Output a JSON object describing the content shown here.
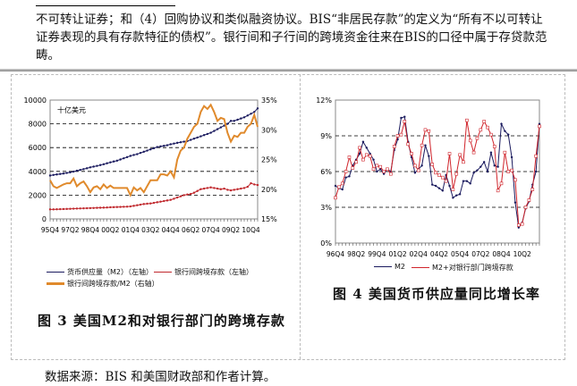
{
  "document": {
    "paragraph": "不可转让证券；和（4）回购协议和类似融资协议。BIS“非居民存款”的定义为“所有不以可转让证券表现的具有存款特征的债权”。银行间和子行间的跨境资金往来在BIS的口径中属于存贷款范畴。",
    "figure3_caption": "图 3  美国M2和对银行部门的跨境存款",
    "figure4_caption": "图 4  美国货币供应量同比增长率",
    "source": "数据来源：BIS 和美国财政部和作者计算。"
  },
  "chart_data": [
    {
      "type": "line",
      "annotation": "十亿美元",
      "x_tick_labels": [
        "95Q4",
        "97Q2",
        "98Q4",
        "00Q2",
        "01Q4",
        "03Q2",
        "04Q4",
        "06Q2",
        "07Q4",
        "09Q2",
        "10Q4"
      ],
      "y_left": {
        "range": [
          0,
          10000
        ],
        "ticks": [
          "0",
          "2000",
          "4000",
          "6000",
          "8000",
          "10000"
        ]
      },
      "y_right": {
        "range": [
          15,
          35
        ],
        "ticks": [
          "15%",
          "20%",
          "25%",
          "30%",
          "35%"
        ]
      },
      "grid": "dashed horizontal",
      "legend": "bottom",
      "series": [
        {
          "name": "货币供应量（M2）（左轴）",
          "axis": "left",
          "color": "#1a1a5e",
          "values": [
            3650,
            3700,
            3740,
            3780,
            3820,
            3870,
            3920,
            3980,
            4050,
            4120,
            4190,
            4260,
            4340,
            4400,
            4460,
            4530,
            4600,
            4680,
            4760,
            4830,
            4900,
            5000,
            5100,
            5200,
            5300,
            5380,
            5450,
            5550,
            5650,
            5750,
            5850,
            5950,
            6050,
            6100,
            6150,
            6200,
            6280,
            6340,
            6400,
            6450,
            6500,
            6550,
            6650,
            6750,
            6850,
            6950,
            7050,
            7150,
            7250,
            7400,
            7550,
            7700,
            7850,
            8000,
            8250,
            8250,
            8350,
            8450,
            8550,
            8700,
            8850,
            9000,
            9300
          ]
        },
        {
          "name": "银行间跨境存款（左轴）",
          "axis": "left",
          "color": "#c0282d",
          "values": [
            800,
            800,
            810,
            820,
            830,
            840,
            850,
            860,
            870,
            880,
            890,
            900,
            910,
            920,
            930,
            940,
            950,
            960,
            980,
            990,
            1000,
            1010,
            1020,
            1030,
            1050,
            1100,
            1150,
            1200,
            1250,
            1280,
            1300,
            1350,
            1400,
            1450,
            1500,
            1550,
            1600,
            1700,
            1800,
            1900,
            2000,
            2050,
            2100,
            2200,
            2350,
            2500,
            2550,
            2600,
            2650,
            2600,
            2550,
            2500,
            2550,
            2450,
            2400,
            2450,
            2500,
            2550,
            2600,
            2700,
            3000,
            2900,
            2850
          ]
        },
        {
          "name": "银行间跨境存款/M2（右轴）",
          "axis": "right",
          "color": "#e08a2c",
          "values": [
            21.5,
            20.5,
            20.2,
            20.5,
            20.8,
            21.0,
            21.0,
            21.8,
            20.5,
            21.0,
            21.3,
            20.5,
            19.5,
            20.3,
            20.5,
            20.0,
            20.8,
            20.2,
            20.6,
            20.2,
            20.2,
            20.2,
            20.2,
            20.2,
            19.0,
            20.3,
            19.8,
            20.2,
            19.5,
            20.5,
            21.5,
            21.5,
            21.5,
            22.5,
            22.5,
            22.3,
            23.0,
            22.0,
            25.0,
            26.5,
            27.0,
            28.5,
            29.5,
            30.5,
            31.0,
            33.0,
            34.0,
            33.5,
            34.2,
            33.0,
            31.5,
            32.0,
            31.8,
            29.5,
            28.0,
            29.0,
            28.8,
            29.5,
            29.5,
            30.5,
            31.0,
            32.5,
            30.5
          ]
        }
      ]
    },
    {
      "type": "line",
      "x_tick_labels": [
        "96Q4",
        "98Q2",
        "99Q4",
        "01Q2",
        "02Q4",
        "04Q2",
        "05Q4",
        "07Q2",
        "08Q4",
        "10Q2"
      ],
      "y": {
        "range": [
          0,
          12
        ],
        "ticks": [
          "0%",
          "3%",
          "6%",
          "9%",
          "12%"
        ]
      },
      "grid": "dashed horizontal",
      "legend": "bottom",
      "series": [
        {
          "name": "M2",
          "color": "#1a1a5e",
          "values": [
            4.8,
            4.6,
            4.5,
            5.5,
            5.6,
            6.5,
            7.0,
            7.5,
            8.5,
            8.0,
            7.5,
            7.0,
            6.0,
            6.2,
            5.8,
            6.2,
            6.0,
            7.8,
            8.7,
            10.5,
            10.6,
            8.5,
            7.2,
            5.9,
            6.2,
            6.5,
            8.2,
            7.3,
            4.9,
            4.8,
            4.6,
            4.4,
            5.7,
            4.8,
            3.8,
            4.0,
            4.1,
            5.2,
            5.2,
            5.0,
            5.9,
            6.1,
            6.4,
            6.8,
            6.0,
            7.6,
            6.5,
            6.4,
            10.0,
            9.4,
            9.1,
            7.2,
            3.4,
            1.3,
            1.7,
            2.9,
            3.5,
            4.9,
            6.0,
            10.0
          ]
        },
        {
          "name": "M2+对银行部门跨境存款",
          "color": "#d0242b",
          "values": [
            3.8,
            4.7,
            5.0,
            6.0,
            7.2,
            6.3,
            6.8,
            8.0,
            7.0,
            7.4,
            7.3,
            6.2,
            6.5,
            6.4,
            6.0,
            6.2,
            5.8,
            8.1,
            9.0,
            9.1,
            10.2,
            8.3,
            7.5,
            6.5,
            6.1,
            8.2,
            9.5,
            9.4,
            6.6,
            5.9,
            5.7,
            5.5,
            5.2,
            7.5,
            4.5,
            5.8,
            7.4,
            6.8,
            10.3,
            8.6,
            7.6,
            8.8,
            9.5,
            10.2,
            9.7,
            9.1,
            8.1,
            4.4,
            5.0,
            7.6,
            6.0,
            6.1,
            5.3,
            1.5,
            1.6,
            3.0,
            3.6,
            4.5,
            7.3,
            9.8
          ]
        }
      ]
    }
  ]
}
